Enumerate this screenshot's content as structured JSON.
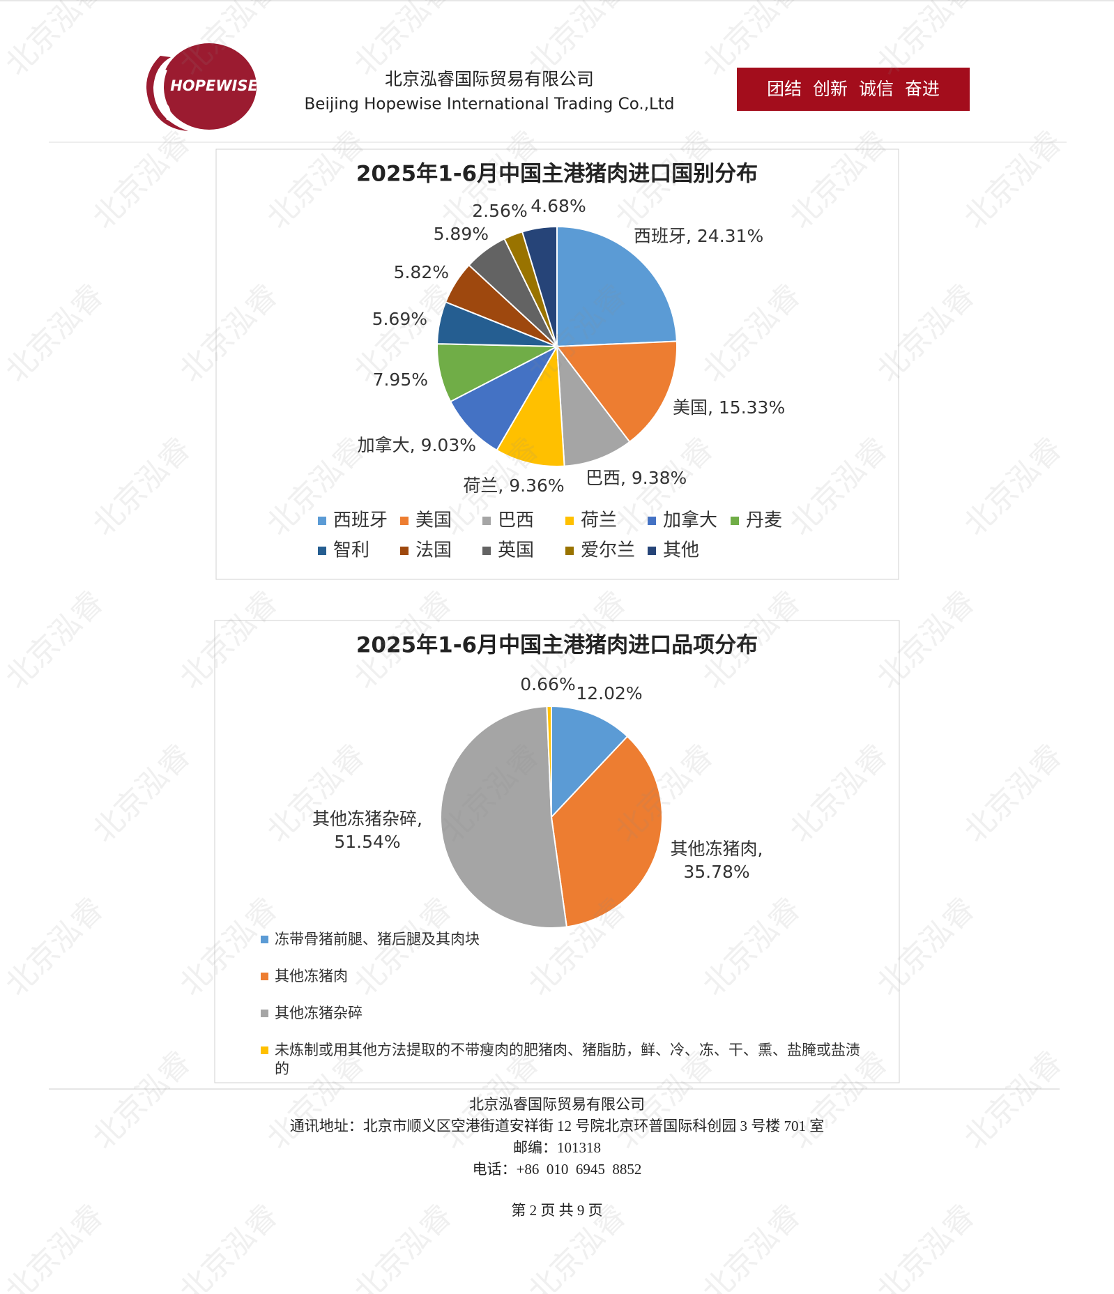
{
  "header": {
    "logo_text": "HOPEWISE",
    "company_cn": "北京泓睿国际贸易有限公司",
    "company_en": "Beijing Hopewise International Trading Co.,Ltd",
    "slogan": "团结  创新  诚信  奋进"
  },
  "chart_data": [
    {
      "type": "pie",
      "title": "2025年1-6月中国主港猪肉进口国别分布",
      "categories": [
        "西班牙",
        "美国",
        "巴西",
        "荷兰",
        "加拿大",
        "丹麦",
        "智利",
        "法国",
        "英国",
        "爱尔兰",
        "其他"
      ],
      "values": [
        24.31,
        15.33,
        9.38,
        9.36,
        9.03,
        7.95,
        5.69,
        5.82,
        5.89,
        2.56,
        4.68
      ],
      "value_labels": [
        "西班牙, 24.31%",
        "美国, 15.33%",
        "巴西, 9.38%",
        "荷兰, 9.36%",
        "加拿大, 9.03%",
        "7.95%",
        "5.69%",
        "5.82%",
        "5.89%",
        "2.56%",
        "4.68%"
      ],
      "colors": [
        "#5b9bd5",
        "#ed7d31",
        "#a5a5a5",
        "#ffc000",
        "#4472c4",
        "#70ad47",
        "#255e91",
        "#9e480e",
        "#636363",
        "#997300",
        "#264478"
      ],
      "legend": "bottom"
    },
    {
      "type": "pie",
      "title": "2025年1-6月中国主港猪肉进口品项分布",
      "categories": [
        "冻带骨猪前腿、猪后腿及其肉块",
        "其他冻猪肉",
        "其他冻猪杂碎",
        "未炼制或用其他方法提取的不带瘦肉的肥猪肉、猪脂肪，鲜、冷、冻、干、熏、盐腌或盐渍的"
      ],
      "values": [
        12.02,
        35.78,
        51.54,
        0.66
      ],
      "value_labels": [
        "12.02%",
        "其他冻猪肉, 35.78%",
        "其他冻猪杂碎, 51.54%",
        "0.66%"
      ],
      "colors": [
        "#5b9bd5",
        "#ed7d31",
        "#a5a5a5",
        "#ffc000"
      ],
      "legend": "bottom-left"
    }
  ],
  "footer": {
    "lines": [
      "北京泓睿国际贸易有限公司",
      "通讯地址：北京市顺义区空港街道安祥街 12 号院北京环普国际科创园 3 号楼 701 室",
      "邮编：101318",
      "电话：+86  010  6945  8852"
    ],
    "page": "第 2 页 共 9 页"
  },
  "watermark": "北京泓睿"
}
